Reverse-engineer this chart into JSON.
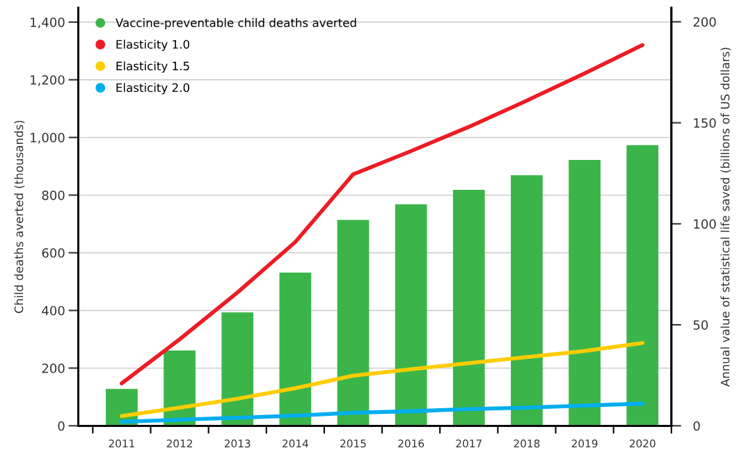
{
  "chart_data": {
    "type": "bar",
    "categories": [
      "2011",
      "2012",
      "2013",
      "2014",
      "2015",
      "2016",
      "2017",
      "2018",
      "2019",
      "2020"
    ],
    "ylabel": "Child deaths averted (thousands)",
    "y2label": "Annual value of statistical life saved (billions of US dollars)",
    "ylim": [
      0,
      1450
    ],
    "yticks": [
      {
        "value": 0,
        "label": "0"
      },
      {
        "value": 200,
        "label": "200"
      },
      {
        "value": 400,
        "label": "400"
      },
      {
        "value": 600,
        "label": "600"
      },
      {
        "value": 800,
        "label": "800"
      },
      {
        "value": 1000,
        "label": "1,000"
      },
      {
        "value": 1200,
        "label": "1,200"
      },
      {
        "value": 1400,
        "label": "1,400"
      }
    ],
    "y2lim": [
      0,
      207
    ],
    "y2ticks": [
      0,
      50,
      100,
      150,
      200
    ],
    "grid": "y",
    "legend": "top left",
    "series": [
      {
        "name": "Vaccine-preventable child deaths averted",
        "color": "#3bb54a",
        "values": [
          128,
          261,
          393,
          531,
          714,
          768,
          818,
          869,
          922,
          973
        ]
      },
      {
        "name": "Elasticity 1.0",
        "type": "line",
        "axis": "y2",
        "color": "#ed1c24",
        "values": [
          21,
          42.8,
          66,
          91,
          124.5,
          136,
          148,
          161,
          174.5,
          188.5
        ]
      },
      {
        "name": "Elasticity 1.5",
        "type": "line",
        "axis": "y2",
        "color": "#ffcc00",
        "values": [
          4.8,
          9,
          13.4,
          18.6,
          24.8,
          28,
          31,
          34,
          37,
          41
        ]
      },
      {
        "name": "Elasticity 2.0",
        "type": "line",
        "axis": "y2",
        "color": "#00aeef",
        "values": [
          2,
          3,
          4,
          5,
          6.5,
          7.2,
          8.3,
          9,
          10,
          11
        ]
      }
    ]
  }
}
